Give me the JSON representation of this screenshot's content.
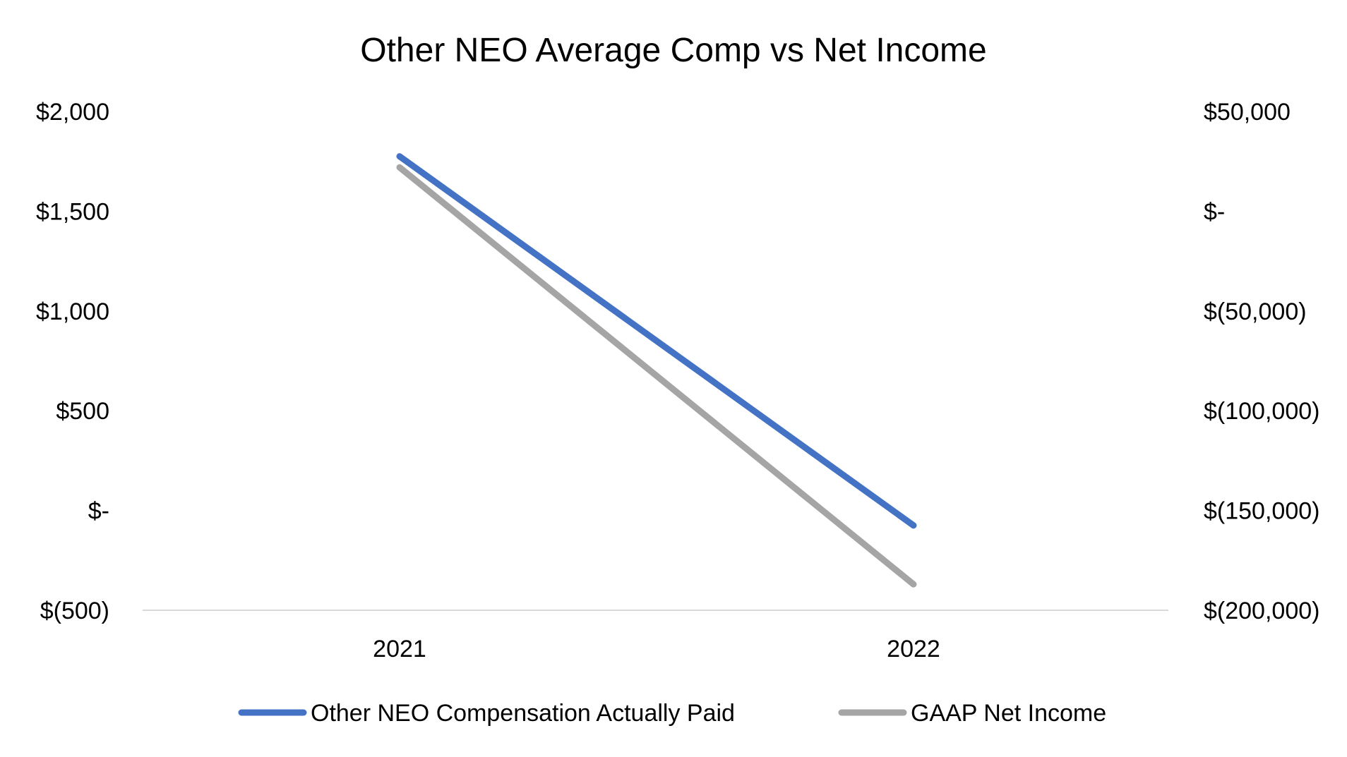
{
  "chart_data": {
    "type": "line",
    "title": "Other NEO Average Comp vs Net Income",
    "categories": [
      "2021",
      "2022"
    ],
    "y_left": {
      "range": [
        -500,
        2000
      ],
      "ticks": [
        2000,
        1500,
        1000,
        500,
        0,
        -500
      ],
      "tick_labels": [
        "$2,000",
        "$1,500",
        "$1,000",
        "$500",
        "$-",
        "$(500)"
      ]
    },
    "y_right": {
      "range": [
        -200000,
        50000
      ],
      "ticks": [
        50000,
        0,
        -50000,
        -100000,
        -150000,
        -200000
      ],
      "tick_labels": [
        "$50,000",
        "$-",
        "$(50,000)",
        "$(100,000)",
        "$(150,000)",
        "$(200,000)"
      ]
    },
    "series": [
      {
        "name": "Other NEO Compensation Actually Paid",
        "axis": "left",
        "color": "#4472C4",
        "values": [
          1775,
          -75
        ]
      },
      {
        "name": "GAAP Net Income",
        "axis": "right",
        "color": "#A5A5A5",
        "values": [
          22000,
          -187000
        ]
      }
    ],
    "grid": false,
    "legend": "bottom"
  }
}
